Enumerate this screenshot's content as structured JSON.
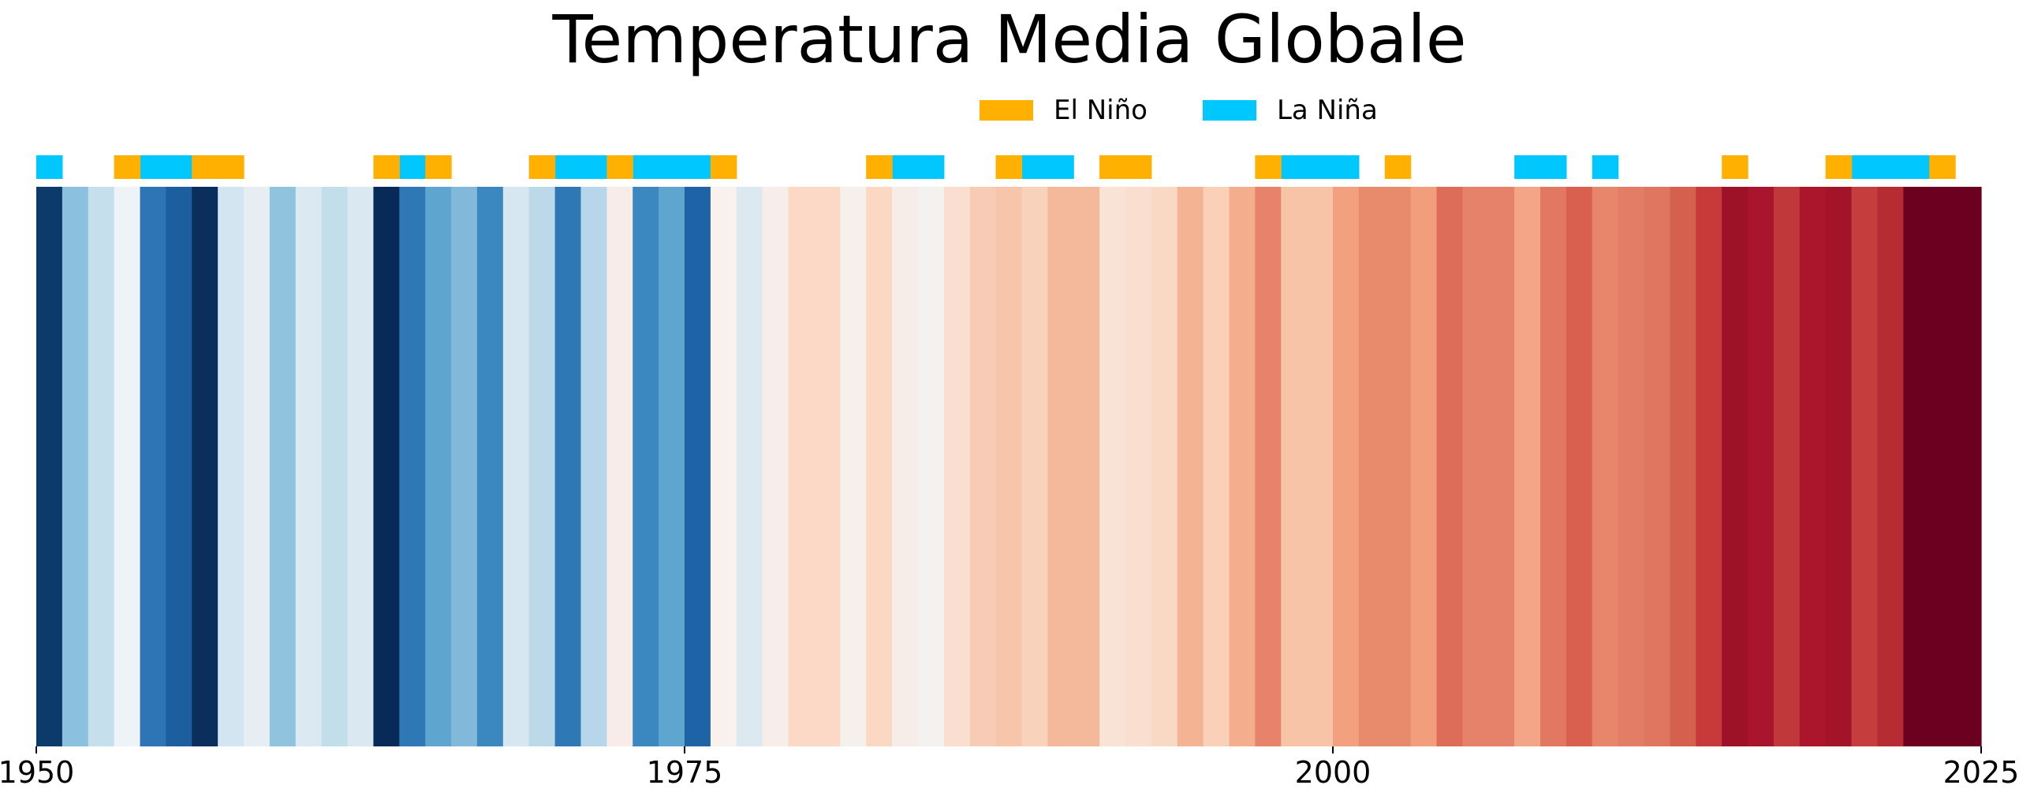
{
  "title": "Temperatura Media Globale",
  "legend": [
    {
      "label": "El Niño",
      "color": "#FFB000"
    },
    {
      "label": "La Niña",
      "color": "#00C8FF"
    }
  ],
  "chart_data": {
    "type": "heatmap",
    "title": "Temperatura Media Globale",
    "xlim": [
      1950,
      2025
    ],
    "x_ticks": [
      1950,
      1975,
      2000,
      2025
    ],
    "stripes": [
      {
        "year": 1950,
        "color": "#0c3a6b"
      },
      {
        "year": 1951,
        "color": "#8cc0df"
      },
      {
        "year": 1952,
        "color": "#c6dfed"
      },
      {
        "year": 1953,
        "color": "#eef3f7"
      },
      {
        "year": 1954,
        "color": "#2e75b5"
      },
      {
        "year": 1955,
        "color": "#1c5e9e"
      },
      {
        "year": 1956,
        "color": "#0a2f5c"
      },
      {
        "year": 1957,
        "color": "#d2e5f0"
      },
      {
        "year": 1958,
        "color": "#e6eef4"
      },
      {
        "year": 1959,
        "color": "#8fc3de"
      },
      {
        "year": 1960,
        "color": "#dbe9f2"
      },
      {
        "year": 1961,
        "color": "#c3deeb"
      },
      {
        "year": 1962,
        "color": "#dae8f1"
      },
      {
        "year": 1963,
        "color": "#082a58"
      },
      {
        "year": 1964,
        "color": "#2f78b6"
      },
      {
        "year": 1965,
        "color": "#5ea5d0"
      },
      {
        "year": 1966,
        "color": "#82b9db"
      },
      {
        "year": 1967,
        "color": "#3b87c0"
      },
      {
        "year": 1968,
        "color": "#d7e7f1"
      },
      {
        "year": 1969,
        "color": "#bcd9ea"
      },
      {
        "year": 1970,
        "color": "#2f78b6"
      },
      {
        "year": 1971,
        "color": "#b7d6e9"
      },
      {
        "year": 1972,
        "color": "#f8ece8"
      },
      {
        "year": 1973,
        "color": "#3b87c0"
      },
      {
        "year": 1974,
        "color": "#5ea5d0"
      },
      {
        "year": 1975,
        "color": "#1d63a6"
      },
      {
        "year": 1976,
        "color": "#f8f1ed"
      },
      {
        "year": 1977,
        "color": "#dde9f1"
      },
      {
        "year": 1978,
        "color": "#f7ede9"
      },
      {
        "year": 1979,
        "color": "#fcd9c7"
      },
      {
        "year": 1980,
        "color": "#fcd9c7"
      },
      {
        "year": 1981,
        "color": "#f6f0ed"
      },
      {
        "year": 1982,
        "color": "#fbd8c4"
      },
      {
        "year": 1983,
        "color": "#f7ede8"
      },
      {
        "year": 1984,
        "color": "#f4f2f1"
      },
      {
        "year": 1985,
        "color": "#fadecf"
      },
      {
        "year": 1986,
        "color": "#f8ccb4"
      },
      {
        "year": 1987,
        "color": "#f6c5aa"
      },
      {
        "year": 1988,
        "color": "#f9d2bc"
      },
      {
        "year": 1989,
        "color": "#f4b99b"
      },
      {
        "year": 1990,
        "color": "#f4b99b"
      },
      {
        "year": 1991,
        "color": "#f9e2d6"
      },
      {
        "year": 1992,
        "color": "#fadfd0"
      },
      {
        "year": 1993,
        "color": "#f9d8c4"
      },
      {
        "year": 1994,
        "color": "#f4b393"
      },
      {
        "year": 1995,
        "color": "#fad0b8"
      },
      {
        "year": 1996,
        "color": "#f4ae8d"
      },
      {
        "year": 1997,
        "color": "#e6836a"
      },
      {
        "year": 1998,
        "color": "#f8c4a8"
      },
      {
        "year": 1999,
        "color": "#f8c4a8"
      },
      {
        "year": 2000,
        "color": "#f2a07f"
      },
      {
        "year": 2001,
        "color": "#e88a6c"
      },
      {
        "year": 2002,
        "color": "#e88a6c"
      },
      {
        "year": 2003,
        "color": "#f29d7b"
      },
      {
        "year": 2004,
        "color": "#dd6c58"
      },
      {
        "year": 2005,
        "color": "#e6826a"
      },
      {
        "year": 2006,
        "color": "#e6826a"
      },
      {
        "year": 2007,
        "color": "#f4a587"
      },
      {
        "year": 2008,
        "color": "#e27862"
      },
      {
        "year": 2009,
        "color": "#d9604f"
      },
      {
        "year": 2010,
        "color": "#e8866b"
      },
      {
        "year": 2011,
        "color": "#e47d65"
      },
      {
        "year": 2012,
        "color": "#e07560"
      },
      {
        "year": 2013,
        "color": "#d5604e"
      },
      {
        "year": 2014,
        "color": "#c7393a"
      },
      {
        "year": 2015,
        "color": "#9e1228"
      },
      {
        "year": 2016,
        "color": "#a9152c"
      },
      {
        "year": 2017,
        "color": "#c0383a"
      },
      {
        "year": 2018,
        "color": "#ac162c"
      },
      {
        "year": 2019,
        "color": "#a41429"
      },
      {
        "year": 2020,
        "color": "#c53e3d"
      },
      {
        "year": 2021,
        "color": "#b62c32"
      },
      {
        "year": 2022,
        "color": "#6b0020"
      },
      {
        "year": 2023,
        "color": "#6b0020"
      },
      {
        "year": 2024,
        "color": "#6b0020"
      }
    ],
    "enso_events": [
      {
        "type": "La Niña",
        "years": [
          1950,
          1954,
          1955,
          1964,
          1970,
          1971,
          1973,
          1974,
          1975,
          1983,
          1984,
          1988,
          1989,
          1998,
          1999,
          2000,
          2007,
          2008,
          2010,
          2020,
          2021,
          2022
        ]
      },
      {
        "type": "El Niño",
        "years": [
          1953,
          1956,
          1957,
          1963,
          1965,
          1969,
          1972,
          1976,
          1982,
          1987,
          1991,
          1992,
          1997,
          2002,
          2015,
          2019,
          2023
        ]
      }
    ]
  }
}
